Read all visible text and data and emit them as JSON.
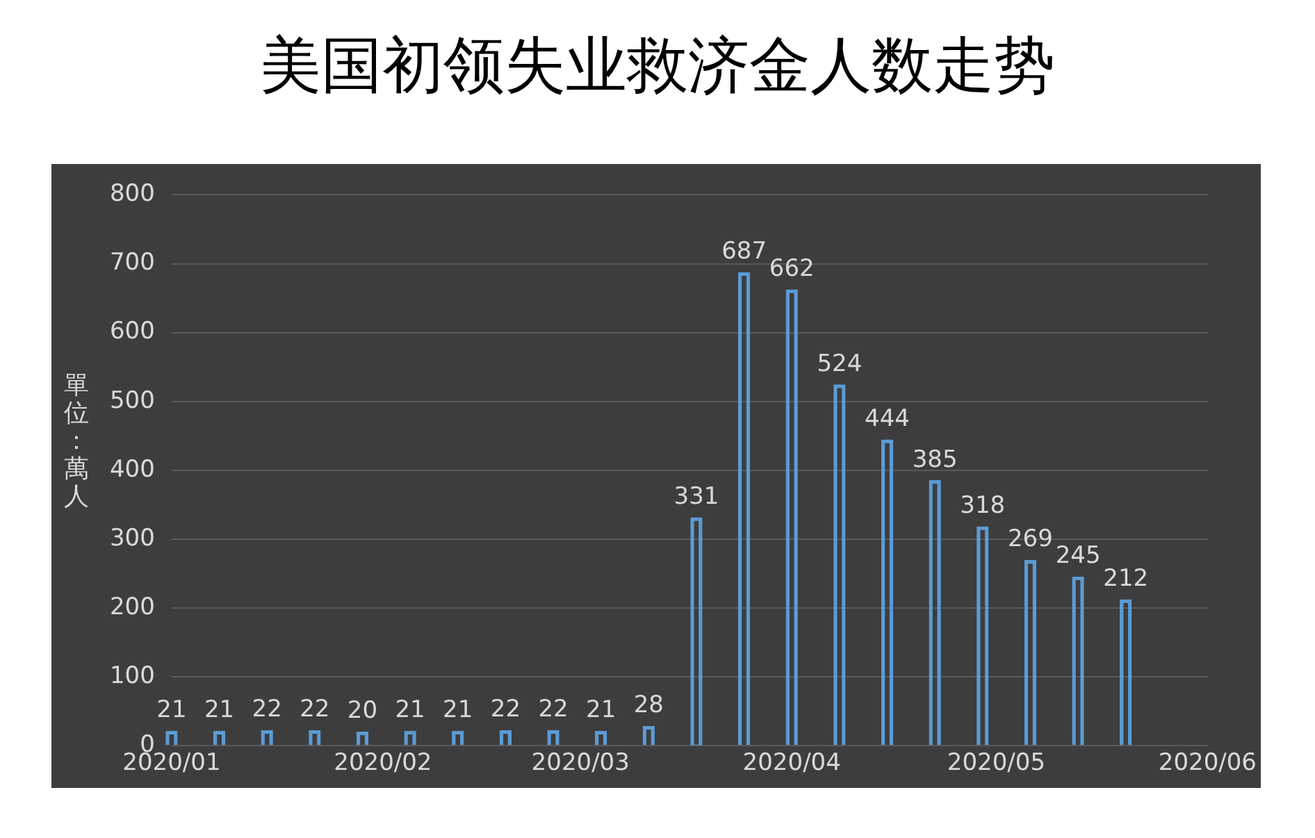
{
  "chart_data": {
    "type": "bar",
    "title": "美国初领失业救济金人数走势",
    "ylabel": "單位：萬人",
    "x": [
      "2020-01-01",
      "2020-01-08",
      "2020-01-15",
      "2020-01-22",
      "2020-01-29",
      "2020-02-05",
      "2020-02-12",
      "2020-02-19",
      "2020-02-26",
      "2020-03-04",
      "2020-03-11",
      "2020-03-18",
      "2020-03-25",
      "2020-04-01",
      "2020-04-08",
      "2020-04-15",
      "2020-04-22",
      "2020-04-29",
      "2020-05-06",
      "2020-05-13",
      "2020-05-20"
    ],
    "values": [
      21,
      21,
      22,
      22,
      20,
      21,
      21,
      22,
      22,
      21,
      28,
      331,
      687,
      662,
      524,
      444,
      385,
      318,
      269,
      245,
      212
    ],
    "color": "#5b9bd5",
    "data_labels": true,
    "grid": "y",
    "legend": false,
    "xlim": [
      "2020-01-01",
      "2020-06-01"
    ],
    "xticks": [
      {
        "value": "2020-01-01",
        "label": "2020/01"
      },
      {
        "value": "2020-02-01",
        "label": "2020/02"
      },
      {
        "value": "2020-03-01",
        "label": "2020/03"
      },
      {
        "value": "2020-04-01",
        "label": "2020/04"
      },
      {
        "value": "2020-05-01",
        "label": "2020/05"
      },
      {
        "value": "2020-06-01",
        "label": "2020/06"
      }
    ],
    "ylim": [
      0,
      800
    ],
    "yticks": [
      0,
      100,
      200,
      300,
      400,
      500,
      600,
      700,
      800
    ]
  }
}
